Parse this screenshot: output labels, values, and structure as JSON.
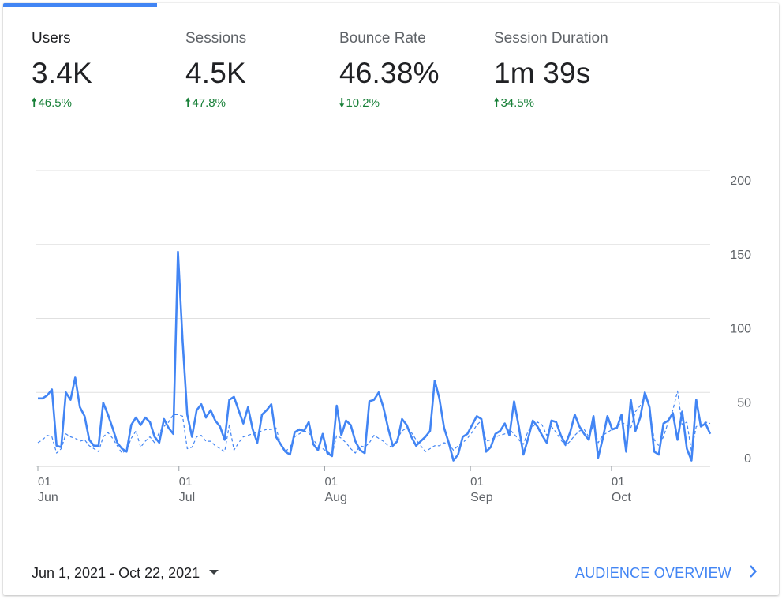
{
  "metrics": [
    {
      "label": "Users",
      "value": "3.4K",
      "direction": "up",
      "change": "46.5%"
    },
    {
      "label": "Sessions",
      "value": "4.5K",
      "direction": "up",
      "change": "47.8%"
    },
    {
      "label": "Bounce Rate",
      "value": "46.38%",
      "direction": "down",
      "change": "10.2%"
    },
    {
      "label": "Session Duration",
      "value": "1m 39s",
      "direction": "up",
      "change": "34.5%"
    }
  ],
  "colors": {
    "accent": "#4285f4",
    "positive": "#188038",
    "grid": "#e0e0e0",
    "axis_text": "#5f6368"
  },
  "footer": {
    "date_range": "Jun 1, 2021 - Oct 22, 2021",
    "overview_link": "AUDIENCE OVERVIEW"
  },
  "chart_data": {
    "type": "line",
    "x_start": "2021-06-01",
    "x_end": "2021-10-22",
    "ylim": [
      0,
      200
    ],
    "y_ticks": [
      0,
      50,
      100,
      150,
      200
    ],
    "x_ticks": [
      {
        "date": "2021-06-01",
        "day": "01",
        "month": "Jun"
      },
      {
        "date": "2021-07-01",
        "day": "01",
        "month": "Jul"
      },
      {
        "date": "2021-08-01",
        "day": "01",
        "month": "Aug"
      },
      {
        "date": "2021-09-01",
        "day": "01",
        "month": "Sep"
      },
      {
        "date": "2021-10-01",
        "day": "01",
        "month": "Oct"
      }
    ],
    "grid": true,
    "series": [
      {
        "style": "solid",
        "values": [
          46,
          46,
          48,
          52,
          14,
          13,
          50,
          45,
          60,
          40,
          34,
          18,
          14,
          14,
          43,
          35,
          26,
          16,
          12,
          10,
          28,
          33,
          28,
          33,
          30,
          20,
          16,
          32,
          26,
          22,
          145,
          85,
          35,
          20,
          38,
          42,
          33,
          38,
          31,
          27,
          18,
          45,
          47,
          38,
          29,
          40,
          25,
          16,
          35,
          38,
          42,
          20,
          15,
          10,
          8,
          23,
          25,
          24,
          30,
          15,
          11,
          22,
          9,
          7,
          41,
          21,
          31,
          28,
          17,
          11,
          9,
          44,
          45,
          50,
          40,
          26,
          14,
          17,
          32,
          28,
          20,
          14,
          17,
          20,
          24,
          58,
          46,
          26,
          16,
          4,
          8,
          20,
          22,
          28,
          34,
          32,
          10,
          13,
          22,
          24,
          29,
          21,
          44,
          27,
          8,
          19,
          31,
          27,
          21,
          16,
          31,
          30,
          21,
          15,
          23,
          35,
          27,
          22,
          18,
          34,
          6,
          19,
          34,
          25,
          26,
          35,
          10,
          45,
          24,
          33,
          50,
          40,
          10,
          8,
          29,
          31,
          36,
          18,
          37,
          12,
          4,
          45,
          27,
          29,
          22
        ]
      },
      {
        "style": "dashed",
        "values": [
          16,
          18,
          21,
          20,
          9,
          12,
          22,
          20,
          19,
          17,
          18,
          14,
          12,
          10,
          20,
          23,
          19,
          14,
          9,
          11,
          19,
          24,
          13,
          17,
          20,
          16,
          23,
          27,
          30,
          35,
          35,
          34,
          12,
          13,
          20,
          21,
          17,
          17,
          14,
          12,
          10,
          28,
          11,
          16,
          20,
          21,
          22,
          23,
          24,
          25,
          25,
          26,
          15,
          10,
          13,
          20,
          22,
          24,
          23,
          18,
          14,
          12,
          10,
          8,
          21,
          19,
          16,
          12,
          9,
          14,
          13,
          16,
          21,
          19,
          17,
          14,
          13,
          19,
          24,
          26,
          23,
          18,
          14,
          10,
          12,
          14,
          14,
          16,
          15,
          11,
          14,
          16,
          19,
          23,
          28,
          31,
          17,
          18,
          20,
          21,
          22,
          25,
          22,
          18,
          15,
          24,
          27,
          30,
          28,
          21,
          27,
          23,
          18,
          14,
          17,
          21,
          24,
          25,
          20,
          28,
          16,
          21,
          23,
          25,
          27,
          30,
          28,
          26,
          37,
          41,
          49,
          40,
          18,
          14,
          20,
          30,
          38,
          51,
          28,
          30,
          10,
          27,
          28,
          30,
          29
        ]
      }
    ]
  }
}
